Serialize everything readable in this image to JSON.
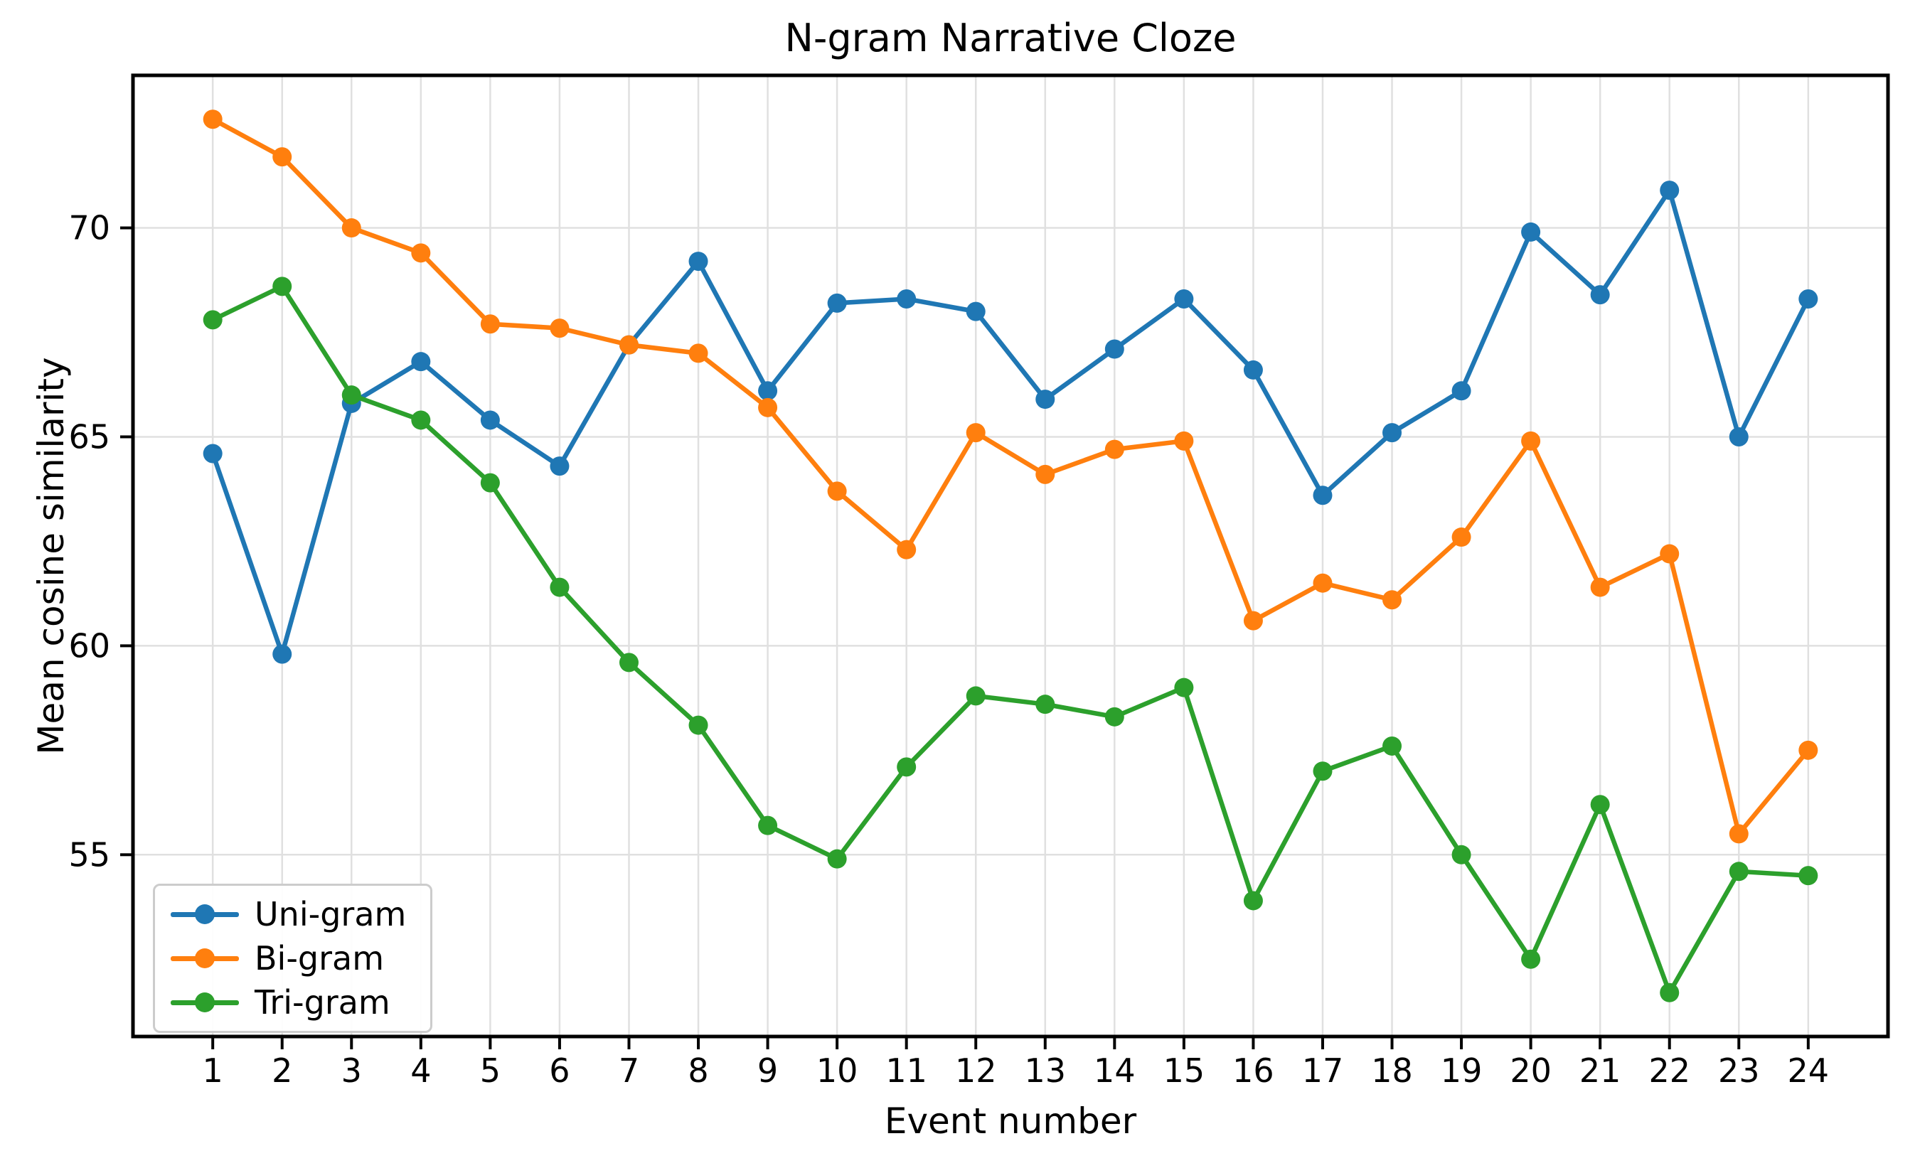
{
  "chart_data": {
    "type": "line",
    "title": "N-gram Narrative Cloze",
    "xlabel": "Event number",
    "ylabel": "Mean cosine similarity",
    "x": [
      1,
      2,
      3,
      4,
      5,
      6,
      7,
      8,
      9,
      10,
      11,
      12,
      13,
      14,
      15,
      16,
      17,
      18,
      19,
      20,
      21,
      22,
      23,
      24
    ],
    "series": [
      {
        "name": "Uni-gram",
        "color": "#1f77b4",
        "values": [
          64.6,
          59.8,
          65.8,
          66.8,
          65.4,
          64.3,
          67.2,
          69.2,
          66.1,
          68.2,
          68.3,
          68.0,
          65.9,
          67.1,
          68.3,
          66.6,
          63.6,
          65.1,
          66.1,
          69.9,
          68.4,
          70.9,
          65.0,
          68.3
        ]
      },
      {
        "name": "Bi-gram",
        "color": "#ff7f0e",
        "values": [
          72.6,
          71.7,
          70.0,
          69.4,
          67.7,
          67.6,
          67.2,
          67.0,
          65.7,
          63.7,
          62.3,
          65.1,
          64.1,
          64.7,
          64.9,
          60.6,
          61.5,
          61.1,
          62.6,
          64.9,
          61.4,
          62.2,
          55.5,
          57.5
        ]
      },
      {
        "name": "Tri-gram",
        "color": "#2ca02c",
        "values": [
          67.8,
          68.6,
          66.0,
          65.4,
          63.9,
          61.4,
          59.6,
          58.1,
          55.7,
          54.9,
          57.1,
          58.8,
          58.6,
          58.3,
          59.0,
          53.9,
          57.0,
          57.6,
          55.0,
          52.5,
          56.2,
          51.7,
          54.6,
          54.5
        ]
      }
    ],
    "x_ticks": [
      1,
      2,
      3,
      4,
      5,
      6,
      7,
      8,
      9,
      10,
      11,
      12,
      13,
      14,
      15,
      16,
      17,
      18,
      19,
      20,
      21,
      22,
      23,
      24
    ],
    "y_ticks": [
      55,
      60,
      65,
      70
    ],
    "xlim": [
      -0.15,
      25.15
    ],
    "ylim": [
      50.65,
      73.65
    ],
    "grid": true,
    "legend_position": "lower left",
    "grid_color": "#e0e0e0",
    "spine_color": "#000000",
    "tick_color": "#000000",
    "background": "#ffffff"
  }
}
